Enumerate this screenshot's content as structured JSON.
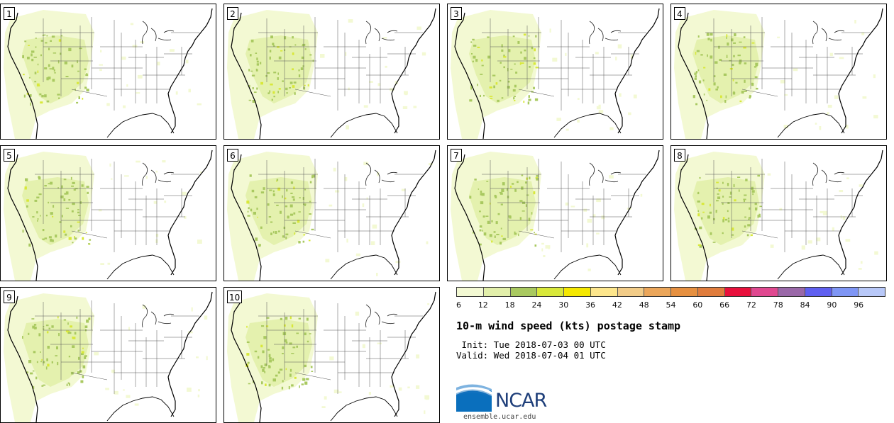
{
  "figure": {
    "title": "10-m wind speed (kts) postage stamp",
    "init_text": " Init: Tue 2018-07-03 00 UTC",
    "valid_text": "Valid: Wed 2018-07-04 01 UTC"
  },
  "members": [
    "1",
    "2",
    "3",
    "4",
    "5",
    "6",
    "7",
    "8",
    "9",
    "10"
  ],
  "colorbar": {
    "ticks": [
      "6",
      "12",
      "18",
      "24",
      "30",
      "36",
      "42",
      "48",
      "54",
      "60",
      "66",
      "72",
      "78",
      "84",
      "90",
      "96"
    ],
    "colors": [
      "#f3f9d3",
      "#e2efaa",
      "#a9c960",
      "#d8e83a",
      "#f5e800",
      "#fde68c",
      "#f2cc88",
      "#eba65a",
      "#e69040",
      "#e07c3c",
      "#e8103c",
      "#e04890",
      "#9a68a8",
      "#6060f0",
      "#7f96f5",
      "#b8c8f8"
    ]
  },
  "logo": {
    "text": "NCAR",
    "url": "ensemble.ucar.edu",
    "colors": {
      "blue": "#1f3f7a",
      "swoosh": "#1a73c0"
    }
  }
}
